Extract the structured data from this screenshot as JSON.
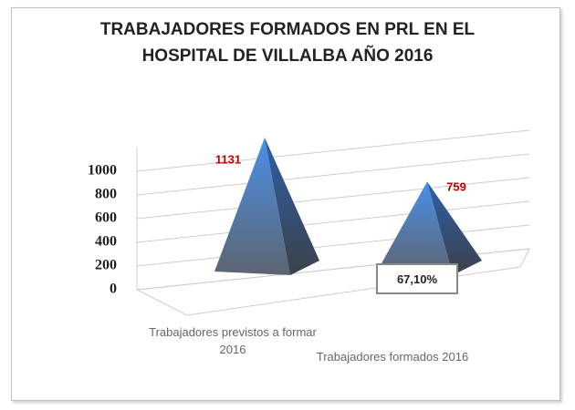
{
  "chart_data": {
    "type": "pyramid",
    "title": "TRABAJADORES FORMADOS EN PRL EN EL HOSPITAL DE VILLALBA AÑO 2016",
    "categories": [
      "Trabajadores previstos a formar 2016",
      "Trabajadores formados 2016"
    ],
    "values": [
      1131,
      759
    ],
    "color": "#3a7fd5",
    "label_color": "#c00000",
    "ylim": [
      0,
      1200
    ],
    "yticks": [
      0,
      200,
      400,
      600,
      800,
      1000
    ],
    "grid": true,
    "annotation": "67,10%"
  }
}
